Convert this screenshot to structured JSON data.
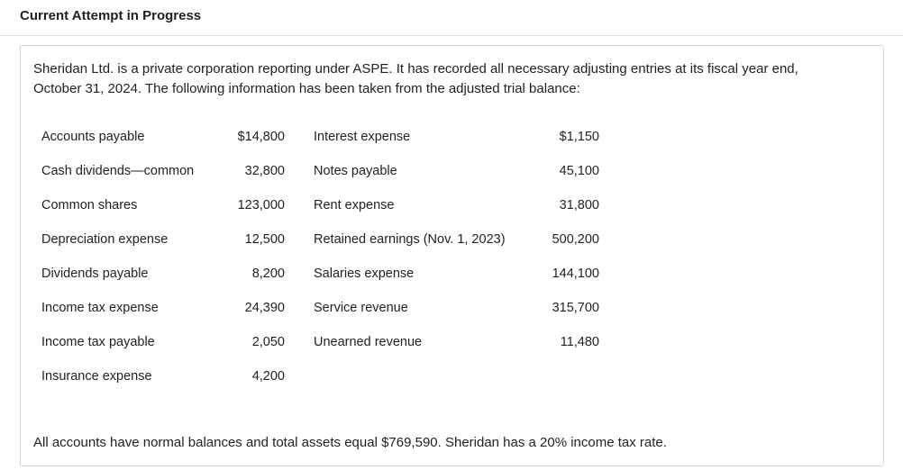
{
  "header": {
    "title": "Current Attempt in Progress"
  },
  "problem": {
    "intro": "Sheridan Ltd. is a private corporation reporting under ASPE. It has recorded all necessary adjusting entries at its fiscal year end, October 31, 2024. The following information has been taken from the adjusted trial balance:",
    "left_accounts": [
      {
        "name": "Accounts payable",
        "amount": "$14,800"
      },
      {
        "name": "Cash dividends—common",
        "amount": "32,800"
      },
      {
        "name": "Common shares",
        "amount": "123,000"
      },
      {
        "name": "Depreciation expense",
        "amount": "12,500"
      },
      {
        "name": "Dividends payable",
        "amount": "8,200"
      },
      {
        "name": "Income tax expense",
        "amount": "24,390"
      },
      {
        "name": "Income tax payable",
        "amount": "2,050"
      },
      {
        "name": "Insurance expense",
        "amount": "4,200"
      }
    ],
    "right_accounts": [
      {
        "name": "Interest expense",
        "amount": "$1,150"
      },
      {
        "name": "Notes payable",
        "amount": "45,100"
      },
      {
        "name": "Rent expense",
        "amount": "31,800"
      },
      {
        "name": "Retained earnings (Nov. 1, 2023)",
        "amount": "500,200"
      },
      {
        "name": "Salaries expense",
        "amount": "144,100"
      },
      {
        "name": "Service revenue",
        "amount": "315,700"
      },
      {
        "name": "Unearned revenue",
        "amount": "11,480"
      }
    ],
    "footer": "All accounts have normal balances and total assets equal $769,590. Sheridan has a 20% income tax rate."
  }
}
